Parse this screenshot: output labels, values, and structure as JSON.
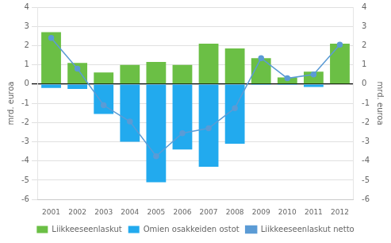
{
  "chart_data": {
    "type": "bar",
    "categories": [
      "2001",
      "2002",
      "2003",
      "2004",
      "2005",
      "2006",
      "2007",
      "2008",
      "2009",
      "2010",
      "2011",
      "2012"
    ],
    "series": [
      {
        "name": "Liikkeeseenlaskut",
        "type": "bar",
        "color": "#6BBF45",
        "values": [
          2.7,
          1.1,
          0.6,
          1.0,
          1.15,
          1.0,
          2.1,
          1.85,
          1.35,
          0.35,
          0.65,
          2.1
        ]
      },
      {
        "name": "Omien osakkeiden ostot",
        "type": "bar",
        "color": "#22AAEE",
        "values": [
          -0.2,
          -0.25,
          -1.55,
          -3.0,
          -5.1,
          -3.4,
          -4.3,
          -3.1,
          -0.05,
          -0.05,
          -0.15,
          0.0
        ]
      },
      {
        "name": "Liikkeeseenlaskut netto",
        "type": "line",
        "color": "#5B9BD5",
        "marker": "circle",
        "values": [
          2.4,
          0.8,
          -1.1,
          -1.95,
          -3.75,
          -2.55,
          -2.3,
          -1.25,
          1.35,
          0.3,
          0.5,
          2.05
        ]
      }
    ],
    "ylabel": "mrd. euroa",
    "y2label": "mrd. euroa",
    "ylim": [
      -6,
      4
    ],
    "yticks": [
      -6,
      -5,
      -4,
      -3,
      -2,
      -1,
      0,
      1,
      2,
      3,
      4
    ],
    "y2lim": [
      -6,
      4
    ],
    "y2ticks": [
      -6,
      -5,
      -4,
      -3,
      -2,
      -1,
      0,
      1,
      2,
      3,
      4
    ],
    "grid": true,
    "legend": "bottom"
  }
}
